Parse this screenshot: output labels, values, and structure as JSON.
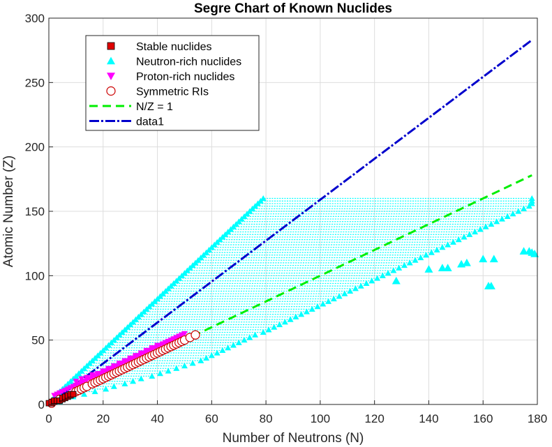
{
  "chart_data": {
    "type": "scatter",
    "title": "Segre Chart of Known Nuclides",
    "xlabel": "Number of Neutrons (N)",
    "ylabel": "Atomic Number (Z)",
    "xlim": [
      0,
      180
    ],
    "ylim": [
      0,
      300
    ],
    "xticks": [
      "0",
      "20",
      "40",
      "60",
      "80",
      "100",
      "120",
      "140",
      "160",
      "180"
    ],
    "yticks": [
      "0",
      "50",
      "100",
      "150",
      "200",
      "250",
      "300"
    ],
    "grid": true,
    "legend_position": "top-left",
    "series": [
      {
        "name": "Stable nuclides",
        "marker": "square",
        "color": "#e00000",
        "points": [
          [
            0,
            1
          ],
          [
            1,
            1
          ],
          [
            1,
            2
          ],
          [
            2,
            2
          ],
          [
            2,
            3
          ],
          [
            3,
            3
          ],
          [
            4,
            3
          ],
          [
            5,
            4
          ],
          [
            5,
            5
          ],
          [
            6,
            5
          ],
          [
            6,
            6
          ],
          [
            7,
            6
          ],
          [
            7,
            7
          ],
          [
            8,
            7
          ],
          [
            8,
            8
          ],
          [
            9,
            8
          ]
        ]
      },
      {
        "name": "Neutron-rich nuclides",
        "marker": "triangle-up",
        "color": "#00ffff",
        "rows": [
          [
            2,
            4,
            1
          ],
          [
            6,
            9,
            2
          ],
          [
            8,
            13,
            3
          ],
          [
            10,
            17,
            4
          ],
          [
            12,
            21,
            5
          ],
          [
            14,
            24,
            6
          ],
          [
            16,
            28,
            7
          ],
          [
            18,
            31,
            8
          ],
          [
            20,
            34,
            9
          ],
          [
            22,
            38,
            10
          ],
          [
            24,
            41,
            11
          ],
          [
            26,
            44,
            12
          ],
          [
            28,
            47,
            13
          ],
          [
            30,
            50,
            14
          ],
          [
            32,
            53,
            15
          ],
          [
            34,
            56,
            16
          ],
          [
            36,
            58,
            17
          ],
          [
            38,
            60,
            18
          ],
          [
            40,
            62,
            19
          ],
          [
            42,
            64,
            20
          ],
          [
            44,
            66,
            21
          ],
          [
            46,
            68,
            22
          ],
          [
            48,
            70,
            23
          ],
          [
            50,
            72,
            24
          ],
          [
            52,
            74,
            25
          ],
          [
            54,
            76,
            26
          ],
          [
            56,
            79,
            27
          ],
          [
            58,
            81,
            28
          ],
          [
            60,
            83,
            29
          ],
          [
            62,
            85,
            30
          ],
          [
            64,
            87,
            31
          ],
          [
            66,
            89,
            32
          ],
          [
            68,
            91,
            33
          ],
          [
            70,
            93,
            34
          ],
          [
            72,
            95,
            35
          ],
          [
            74,
            97,
            36
          ],
          [
            76,
            99,
            37
          ],
          [
            78,
            101,
            38
          ],
          [
            80,
            103,
            39
          ],
          [
            82,
            105,
            40
          ],
          [
            84,
            107,
            41
          ],
          [
            86,
            109,
            42
          ],
          [
            88,
            111,
            43
          ],
          [
            90,
            113,
            44
          ],
          [
            92,
            115,
            45
          ],
          [
            94,
            117,
            46
          ],
          [
            96,
            119,
            47
          ],
          [
            98,
            121,
            48
          ],
          [
            100,
            123,
            49
          ],
          [
            102,
            125,
            50
          ],
          [
            104,
            127,
            51
          ],
          [
            106,
            129,
            52
          ],
          [
            108,
            131,
            53
          ],
          [
            110,
            133,
            54
          ],
          [
            112,
            135,
            55
          ],
          [
            114,
            137,
            56
          ],
          [
            116,
            139,
            57
          ],
          [
            118,
            141,
            58
          ],
          [
            120,
            143,
            59
          ],
          [
            122,
            145,
            60
          ],
          [
            124,
            147,
            61
          ],
          [
            126,
            149,
            62
          ],
          [
            128,
            151,
            63
          ],
          [
            130,
            153,
            64
          ],
          [
            132,
            155,
            65
          ],
          [
            134,
            157,
            66
          ],
          [
            136,
            159,
            67
          ],
          [
            138,
            161,
            68
          ],
          [
            140,
            163,
            69
          ],
          [
            142,
            165,
            70
          ],
          [
            144,
            167,
            71
          ],
          [
            146,
            169,
            72
          ],
          [
            148,
            171,
            73
          ],
          [
            150,
            173,
            74
          ],
          [
            152,
            175,
            75
          ],
          [
            154,
            177,
            76
          ],
          [
            156,
            178,
            77
          ],
          [
            158,
            178,
            78
          ],
          [
            160,
            178,
            79
          ]
        ],
        "extra_points": [
          [
            128,
            96
          ],
          [
            140,
            105
          ],
          [
            145,
            106
          ],
          [
            147,
            106
          ],
          [
            152,
            109
          ],
          [
            154,
            110
          ],
          [
            160,
            113
          ],
          [
            164,
            113
          ],
          [
            162,
            92
          ],
          [
            163,
            92
          ],
          [
            175,
            119
          ],
          [
            177,
            119
          ],
          [
            178,
            118
          ],
          [
            179,
            117
          ]
        ]
      },
      {
        "name": "Proton-rich nuclides",
        "marker": "triangle-down",
        "color": "#ff00ff",
        "points": [
          [
            2,
            7
          ],
          [
            3,
            8
          ],
          [
            4,
            9
          ],
          [
            5,
            10
          ],
          [
            6,
            11
          ],
          [
            7,
            12
          ],
          [
            8,
            13
          ],
          [
            9,
            14
          ],
          [
            10,
            15
          ],
          [
            11,
            16
          ],
          [
            12,
            17
          ],
          [
            13,
            18
          ],
          [
            14,
            19
          ],
          [
            15,
            20
          ],
          [
            16,
            21
          ],
          [
            17,
            22
          ],
          [
            18,
            23
          ],
          [
            19,
            24
          ],
          [
            20,
            25
          ],
          [
            21,
            26
          ],
          [
            22,
            27
          ],
          [
            23,
            28
          ],
          [
            24,
            29
          ],
          [
            25,
            30
          ],
          [
            26,
            31
          ],
          [
            27,
            32
          ],
          [
            28,
            33
          ],
          [
            29,
            34
          ],
          [
            30,
            35
          ],
          [
            31,
            36
          ],
          [
            32,
            37
          ],
          [
            33,
            38
          ],
          [
            34,
            39
          ],
          [
            35,
            40
          ],
          [
            36,
            41
          ],
          [
            37,
            42
          ],
          [
            38,
            43
          ],
          [
            39,
            44
          ],
          [
            40,
            45
          ],
          [
            41,
            46
          ],
          [
            42,
            47
          ],
          [
            43,
            48
          ],
          [
            44,
            49
          ],
          [
            45,
            50
          ],
          [
            46,
            51
          ],
          [
            47,
            52
          ],
          [
            48,
            53
          ],
          [
            49,
            54
          ],
          [
            50,
            55
          ],
          [
            10,
            18
          ],
          [
            12,
            20
          ],
          [
            14,
            21
          ],
          [
            16,
            23
          ],
          [
            18,
            24
          ],
          [
            20,
            26
          ],
          [
            22,
            28
          ],
          [
            24,
            30
          ],
          [
            26,
            32
          ],
          [
            28,
            34
          ],
          [
            30,
            36
          ],
          [
            32,
            38
          ],
          [
            34,
            40
          ],
          [
            36,
            42
          ],
          [
            38,
            44
          ],
          [
            40,
            46
          ],
          [
            42,
            47
          ],
          [
            44,
            48
          ],
          [
            46,
            50
          ],
          [
            48,
            51
          ]
        ]
      },
      {
        "name": "Symmetric RIs",
        "marker": "circle",
        "color": "#cc0000",
        "points": [
          [
            1,
            1
          ],
          [
            4,
            4
          ],
          [
            10,
            10
          ],
          [
            11,
            11
          ],
          [
            12,
            12
          ],
          [
            13,
            13
          ],
          [
            14,
            14
          ],
          [
            16,
            16
          ],
          [
            17,
            17
          ],
          [
            18,
            18
          ],
          [
            19,
            19
          ],
          [
            20,
            20
          ],
          [
            21,
            21
          ],
          [
            22,
            22
          ],
          [
            23,
            23
          ],
          [
            24,
            24
          ],
          [
            25,
            25
          ],
          [
            26,
            26
          ],
          [
            27,
            27
          ],
          [
            28,
            28
          ],
          [
            29,
            29
          ],
          [
            30,
            30
          ],
          [
            31,
            31
          ],
          [
            32,
            32
          ],
          [
            33,
            33
          ],
          [
            34,
            34
          ],
          [
            35,
            35
          ],
          [
            36,
            36
          ],
          [
            37,
            37
          ],
          [
            38,
            38
          ],
          [
            39,
            39
          ],
          [
            40,
            40
          ],
          [
            41,
            41
          ],
          [
            42,
            42
          ],
          [
            43,
            43
          ],
          [
            44,
            44
          ],
          [
            45,
            45
          ],
          [
            46,
            46
          ],
          [
            47,
            47
          ],
          [
            48,
            48
          ],
          [
            49,
            49
          ],
          [
            50,
            50
          ],
          [
            52,
            52
          ],
          [
            54,
            54
          ]
        ]
      },
      {
        "name": "N/Z = 1",
        "type": "line",
        "style": "dashed",
        "color": "#00ee00",
        "points": [
          [
            0,
            0
          ],
          [
            178,
            178
          ]
        ]
      },
      {
        "name": "data1",
        "type": "line",
        "style": "dash-dot",
        "color": "#0000cc",
        "points": [
          [
            0,
            0
          ],
          [
            178,
            283
          ]
        ]
      }
    ]
  }
}
